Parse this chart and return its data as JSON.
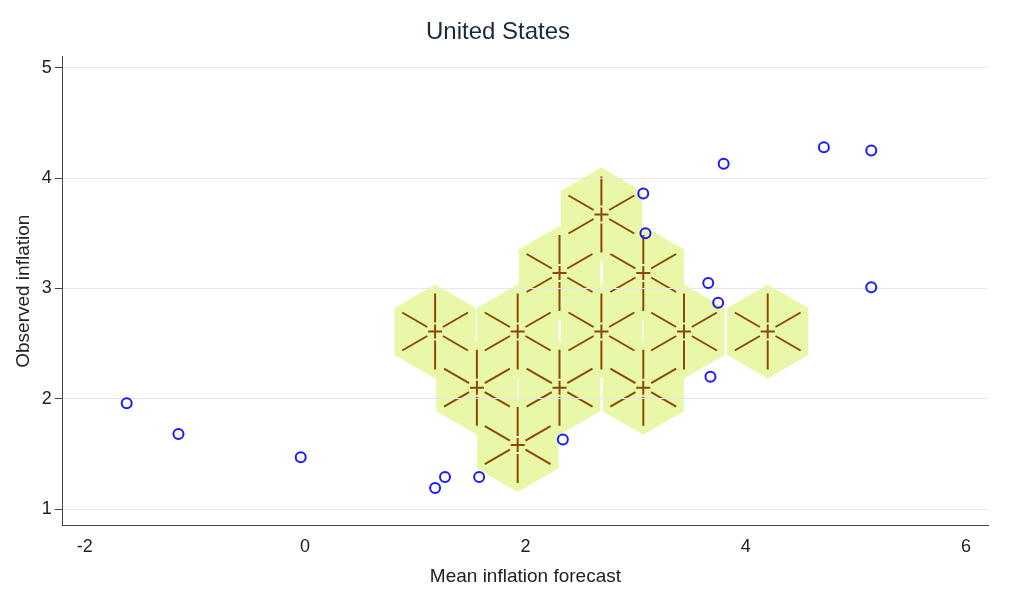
{
  "chart_data": {
    "type": "scatter",
    "title": "United States",
    "xlabel": "Mean inflation forecast",
    "ylabel": "Observed inflation",
    "xlim": [
      -2.2,
      6.2
    ],
    "xticks": [
      -2,
      0,
      2,
      4,
      6
    ],
    "ylim": [
      0.85,
      5.1
    ],
    "yticks": [
      1,
      2,
      3,
      4,
      5
    ],
    "grid": "y",
    "legend": false,
    "series": [
      {
        "color": "#1a1aff",
        "marker": "circle",
        "x": [
          -1.62,
          -1.15,
          -0.04,
          1.18,
          1.27,
          1.58,
          2.34,
          3.07,
          3.09,
          3.8,
          4.71,
          5.14,
          3.66,
          3.75,
          3.68,
          5.14
        ],
        "values": [
          1.96,
          1.68,
          1.47,
          1.19,
          1.29,
          1.29,
          1.63,
          3.86,
          3.5,
          4.13,
          4.28,
          4.25,
          3.05,
          2.87,
          2.2,
          3.01
        ]
      },
      {
        "color": "#8b4a00",
        "marker": "cross",
        "x": [
          2.69,
          2.31,
          3.07,
          1.18,
          1.93,
          2.69,
          3.44,
          4.2,
          1.56,
          2.31,
          3.07,
          1.93
        ],
        "values": [
          3.67,
          3.14,
          3.14,
          2.61,
          2.61,
          2.61,
          2.61,
          2.61,
          2.1,
          2.1,
          2.1,
          1.58
        ]
      }
    ]
  }
}
